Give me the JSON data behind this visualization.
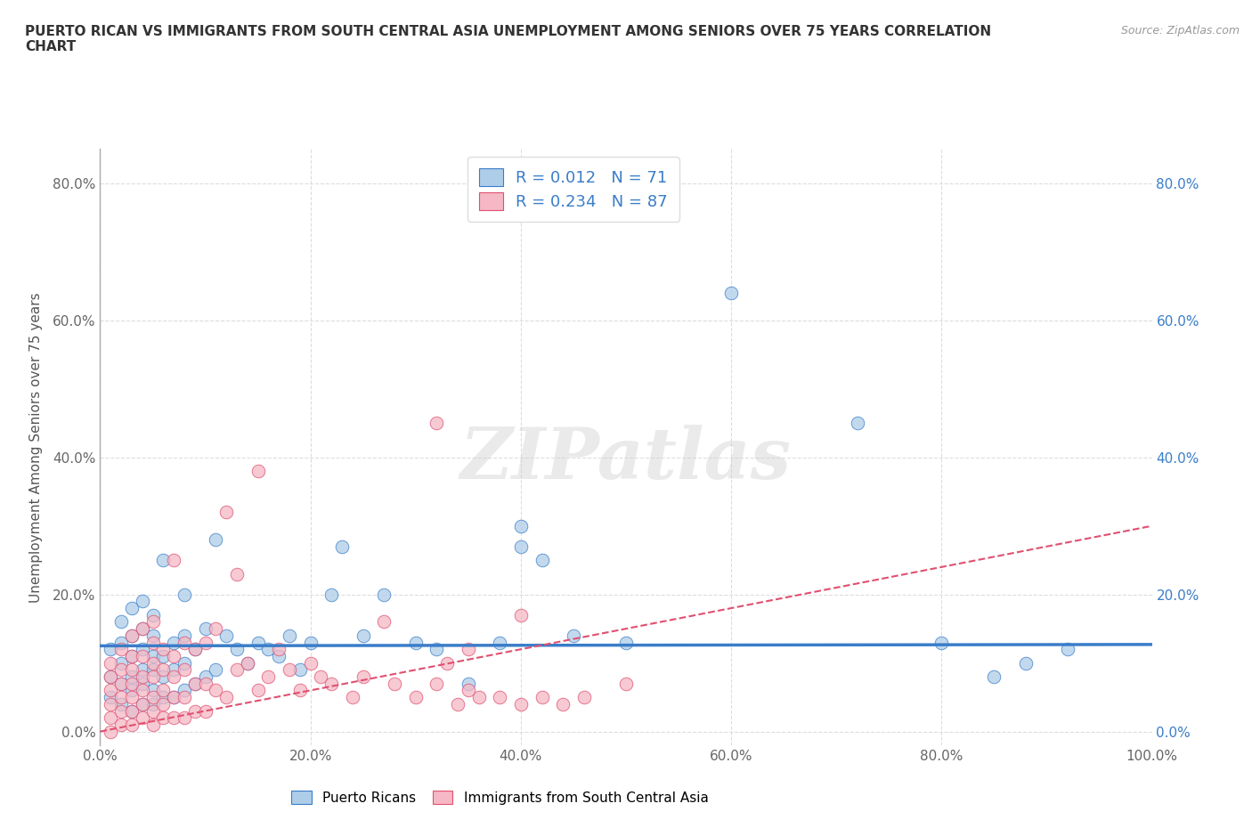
{
  "title": "PUERTO RICAN VS IMMIGRANTS FROM SOUTH CENTRAL ASIA UNEMPLOYMENT AMONG SENIORS OVER 75 YEARS CORRELATION\nCHART",
  "source_text": "Source: ZipAtlas.com",
  "ylabel": "Unemployment Among Seniors over 75 years",
  "xlim": [
    0.0,
    1.0
  ],
  "ylim": [
    -0.02,
    0.85
  ],
  "x_tick_labels": [
    "0.0%",
    "20.0%",
    "40.0%",
    "60.0%",
    "80.0%",
    "100.0%"
  ],
  "x_tick_vals": [
    0.0,
    0.2,
    0.4,
    0.6,
    0.8,
    1.0
  ],
  "y_tick_labels": [
    "0.0%",
    "20.0%",
    "40.0%",
    "60.0%",
    "80.0%"
  ],
  "y_tick_vals": [
    0.0,
    0.2,
    0.4,
    0.6,
    0.8
  ],
  "watermark": "ZIPatlas",
  "legend_R1": "R = 0.012",
  "legend_N1": "N = 71",
  "legend_R2": "R = 0.234",
  "legend_N2": "N = 87",
  "color_blue": "#AECDE8",
  "color_pink": "#F5B8C4",
  "line_color_blue": "#3A7DC9",
  "line_color_pink": "#E05070",
  "grid_color": "#DDDDDD",
  "background_color": "#FFFFFF",
  "blue_scatter_x": [
    0.01,
    0.01,
    0.01,
    0.02,
    0.02,
    0.02,
    0.02,
    0.02,
    0.03,
    0.03,
    0.03,
    0.03,
    0.03,
    0.03,
    0.04,
    0.04,
    0.04,
    0.04,
    0.04,
    0.04,
    0.05,
    0.05,
    0.05,
    0.05,
    0.05,
    0.05,
    0.06,
    0.06,
    0.06,
    0.06,
    0.07,
    0.07,
    0.07,
    0.08,
    0.08,
    0.08,
    0.08,
    0.09,
    0.09,
    0.1,
    0.1,
    0.11,
    0.11,
    0.12,
    0.13,
    0.14,
    0.15,
    0.16,
    0.17,
    0.18,
    0.19,
    0.2,
    0.22,
    0.23,
    0.25,
    0.27,
    0.3,
    0.32,
    0.35,
    0.38,
    0.4,
    0.4,
    0.42,
    0.45,
    0.5,
    0.6,
    0.72,
    0.8,
    0.85,
    0.88,
    0.92
  ],
  "blue_scatter_y": [
    0.05,
    0.08,
    0.12,
    0.04,
    0.07,
    0.1,
    0.13,
    0.16,
    0.03,
    0.06,
    0.08,
    0.11,
    0.14,
    0.18,
    0.04,
    0.07,
    0.09,
    0.12,
    0.15,
    0.19,
    0.04,
    0.06,
    0.09,
    0.11,
    0.14,
    0.17,
    0.05,
    0.08,
    0.11,
    0.25,
    0.05,
    0.09,
    0.13,
    0.06,
    0.1,
    0.14,
    0.2,
    0.07,
    0.12,
    0.08,
    0.15,
    0.09,
    0.28,
    0.14,
    0.12,
    0.1,
    0.13,
    0.12,
    0.11,
    0.14,
    0.09,
    0.13,
    0.2,
    0.27,
    0.14,
    0.2,
    0.13,
    0.12,
    0.07,
    0.13,
    0.27,
    0.3,
    0.25,
    0.14,
    0.13,
    0.64,
    0.45,
    0.13,
    0.08,
    0.1,
    0.12
  ],
  "pink_scatter_x": [
    0.01,
    0.01,
    0.01,
    0.01,
    0.01,
    0.01,
    0.02,
    0.02,
    0.02,
    0.02,
    0.02,
    0.02,
    0.03,
    0.03,
    0.03,
    0.03,
    0.03,
    0.03,
    0.03,
    0.04,
    0.04,
    0.04,
    0.04,
    0.04,
    0.04,
    0.05,
    0.05,
    0.05,
    0.05,
    0.05,
    0.05,
    0.05,
    0.06,
    0.06,
    0.06,
    0.06,
    0.06,
    0.07,
    0.07,
    0.07,
    0.07,
    0.07,
    0.08,
    0.08,
    0.08,
    0.08,
    0.09,
    0.09,
    0.09,
    0.1,
    0.1,
    0.1,
    0.11,
    0.11,
    0.12,
    0.12,
    0.13,
    0.13,
    0.14,
    0.15,
    0.15,
    0.16,
    0.17,
    0.18,
    0.19,
    0.2,
    0.21,
    0.22,
    0.24,
    0.25,
    0.27,
    0.28,
    0.3,
    0.32,
    0.34,
    0.36,
    0.38,
    0.4,
    0.42,
    0.44,
    0.46,
    0.5,
    0.32,
    0.33,
    0.35,
    0.35,
    0.4
  ],
  "pink_scatter_y": [
    0.0,
    0.02,
    0.04,
    0.06,
    0.08,
    0.1,
    0.01,
    0.03,
    0.05,
    0.07,
    0.09,
    0.12,
    0.01,
    0.03,
    0.05,
    0.07,
    0.09,
    0.11,
    0.14,
    0.02,
    0.04,
    0.06,
    0.08,
    0.11,
    0.15,
    0.01,
    0.03,
    0.05,
    0.08,
    0.1,
    0.13,
    0.16,
    0.02,
    0.04,
    0.06,
    0.09,
    0.12,
    0.02,
    0.05,
    0.08,
    0.11,
    0.25,
    0.02,
    0.05,
    0.09,
    0.13,
    0.03,
    0.07,
    0.12,
    0.03,
    0.07,
    0.13,
    0.06,
    0.15,
    0.05,
    0.32,
    0.09,
    0.23,
    0.1,
    0.06,
    0.38,
    0.08,
    0.12,
    0.09,
    0.06,
    0.1,
    0.08,
    0.07,
    0.05,
    0.08,
    0.16,
    0.07,
    0.05,
    0.07,
    0.04,
    0.05,
    0.05,
    0.04,
    0.05,
    0.04,
    0.05,
    0.07,
    0.45,
    0.1,
    0.06,
    0.12,
    0.17
  ],
  "blue_trend_y0": 0.125,
  "blue_trend_y1": 0.127,
  "pink_trend_y0": 0.0,
  "pink_trend_y1": 0.3
}
